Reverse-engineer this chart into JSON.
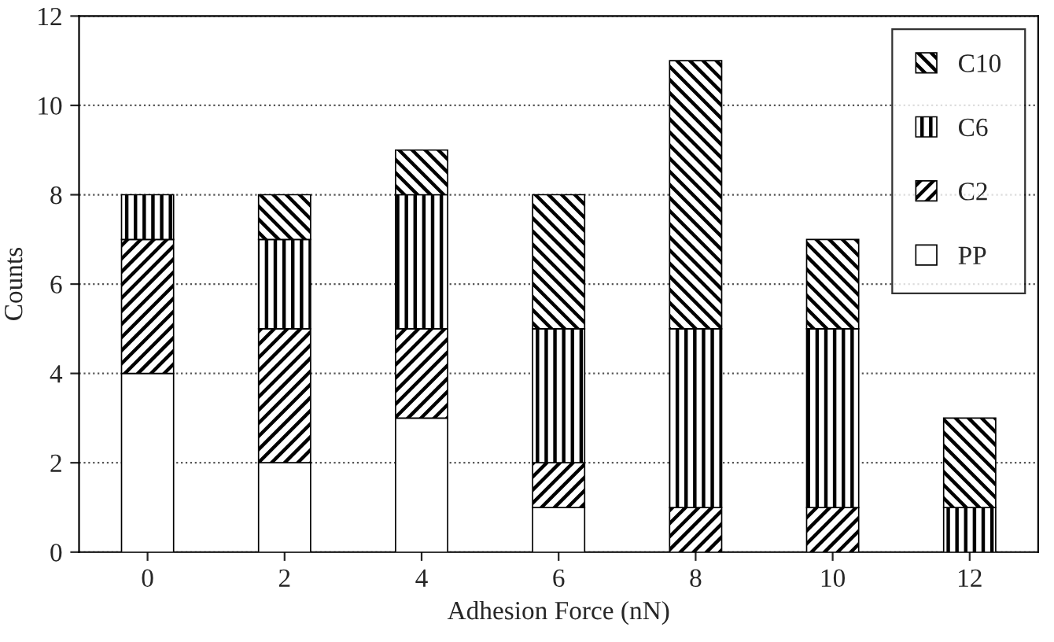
{
  "chart_data": {
    "type": "bar",
    "stacked": true,
    "xlabel": "Adhesion Force (nN)",
    "ylabel": "Counts",
    "categories": [
      "0",
      "2",
      "4",
      "6",
      "8",
      "10",
      "12"
    ],
    "series": [
      {
        "name": "PP",
        "color": "#ffffff",
        "values": [
          4,
          2,
          3,
          1,
          0,
          0,
          0
        ]
      },
      {
        "name": "C2",
        "color": "#000000",
        "values": [
          3,
          3,
          2,
          1,
          1,
          1,
          0
        ]
      },
      {
        "name": "C6",
        "color": "#000000",
        "values": [
          1,
          2,
          3,
          3,
          4,
          4,
          1
        ]
      },
      {
        "name": "C10",
        "color": "#000000",
        "values": [
          0,
          1,
          1,
          3,
          6,
          2,
          2
        ]
      }
    ],
    "ylim": [
      0,
      12
    ],
    "yticks": [
      0,
      2,
      4,
      6,
      8,
      10,
      12
    ],
    "grid": "y",
    "legend": "top right"
  }
}
